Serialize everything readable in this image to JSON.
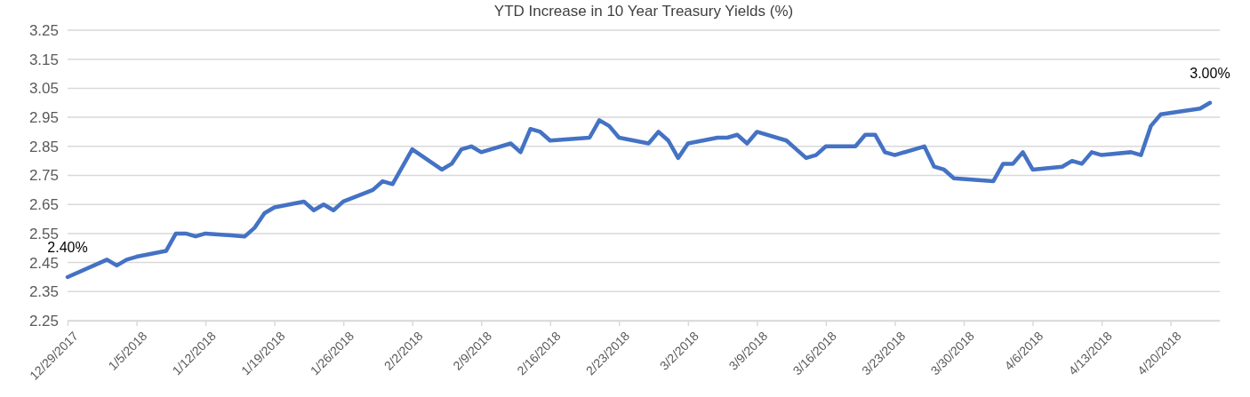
{
  "chart_data": {
    "type": "line",
    "title": "YTD Increase in 10 Year Treasury Yields (%)",
    "x": [
      "2017-12-29",
      "2018-01-02",
      "2018-01-03",
      "2018-01-04",
      "2018-01-05",
      "2018-01-08",
      "2018-01-09",
      "2018-01-10",
      "2018-01-11",
      "2018-01-12",
      "2018-01-16",
      "2018-01-17",
      "2018-01-18",
      "2018-01-19",
      "2018-01-22",
      "2018-01-23",
      "2018-01-24",
      "2018-01-25",
      "2018-01-26",
      "2018-01-29",
      "2018-01-30",
      "2018-01-31",
      "2018-02-02",
      "2018-02-05",
      "2018-02-06",
      "2018-02-07",
      "2018-02-08",
      "2018-02-09",
      "2018-02-12",
      "2018-02-13",
      "2018-02-14",
      "2018-02-15",
      "2018-02-16",
      "2018-02-20",
      "2018-02-21",
      "2018-02-22",
      "2018-02-23",
      "2018-02-26",
      "2018-02-27",
      "2018-02-28",
      "2018-03-01",
      "2018-03-02",
      "2018-03-05",
      "2018-03-06",
      "2018-03-07",
      "2018-03-08",
      "2018-03-09",
      "2018-03-12",
      "2018-03-13",
      "2018-03-14",
      "2018-03-15",
      "2018-03-16",
      "2018-03-19",
      "2018-03-20",
      "2018-03-21",
      "2018-03-22",
      "2018-03-23",
      "2018-03-26",
      "2018-03-27",
      "2018-03-28",
      "2018-03-29",
      "2018-04-02",
      "2018-04-03",
      "2018-04-04",
      "2018-04-05",
      "2018-04-06",
      "2018-04-09",
      "2018-04-10",
      "2018-04-11",
      "2018-04-12",
      "2018-04-13",
      "2018-04-16",
      "2018-04-17",
      "2018-04-18",
      "2018-04-19",
      "2018-04-23",
      "2018-04-24"
    ],
    "series": [
      {
        "color": "#4472c4",
        "values": [
          2.4,
          2.46,
          2.44,
          2.46,
          2.47,
          2.49,
          2.55,
          2.55,
          2.54,
          2.55,
          2.54,
          2.57,
          2.62,
          2.64,
          2.66,
          2.63,
          2.65,
          2.63,
          2.66,
          2.7,
          2.73,
          2.72,
          2.84,
          2.77,
          2.79,
          2.84,
          2.85,
          2.83,
          2.86,
          2.83,
          2.91,
          2.9,
          2.87,
          2.88,
          2.94,
          2.92,
          2.88,
          2.86,
          2.9,
          2.87,
          2.81,
          2.86,
          2.88,
          2.88,
          2.89,
          2.86,
          2.9,
          2.87,
          2.84,
          2.81,
          2.82,
          2.85,
          2.85,
          2.89,
          2.89,
          2.83,
          2.82,
          2.85,
          2.78,
          2.77,
          2.74,
          2.73,
          2.79,
          2.79,
          2.83,
          2.77,
          2.78,
          2.8,
          2.79,
          2.83,
          2.82,
          2.83,
          2.82,
          2.92,
          2.96,
          2.98,
          3.0
        ]
      }
    ],
    "xlim": [
      "2017-12-29",
      "2018-04-25"
    ],
    "xticks": [
      {
        "value": "2017-12-29",
        "label": "12/29/2017"
      },
      {
        "value": "2018-01-05",
        "label": "1/5/2018"
      },
      {
        "value": "2018-01-12",
        "label": "1/12/2018"
      },
      {
        "value": "2018-01-19",
        "label": "1/19/2018"
      },
      {
        "value": "2018-01-26",
        "label": "1/26/2018"
      },
      {
        "value": "2018-02-02",
        "label": "2/2/2018"
      },
      {
        "value": "2018-02-09",
        "label": "2/9/2018"
      },
      {
        "value": "2018-02-16",
        "label": "2/16/2018"
      },
      {
        "value": "2018-02-23",
        "label": "2/23/2018"
      },
      {
        "value": "2018-03-02",
        "label": "3/2/2018"
      },
      {
        "value": "2018-03-09",
        "label": "3/9/2018"
      },
      {
        "value": "2018-03-16",
        "label": "3/16/2018"
      },
      {
        "value": "2018-03-23",
        "label": "3/23/2018"
      },
      {
        "value": "2018-03-30",
        "label": "3/30/2018"
      },
      {
        "value": "2018-04-06",
        "label": "4/6/2018"
      },
      {
        "value": "2018-04-13",
        "label": "4/13/2018"
      },
      {
        "value": "2018-04-20",
        "label": "4/20/2018"
      }
    ],
    "ylim": [
      2.25,
      3.25
    ],
    "yticks": [
      2.25,
      2.35,
      2.45,
      2.55,
      2.65,
      2.75,
      2.85,
      2.95,
      3.05,
      3.15,
      3.25
    ],
    "grid": "y",
    "marker": "none",
    "line_style": "solid",
    "annotations": [
      {
        "text": "2.40%",
        "x": "2017-12-29",
        "y": 2.4
      },
      {
        "text": "3.00%",
        "x": "2018-04-24",
        "y": 3.0
      }
    ]
  }
}
